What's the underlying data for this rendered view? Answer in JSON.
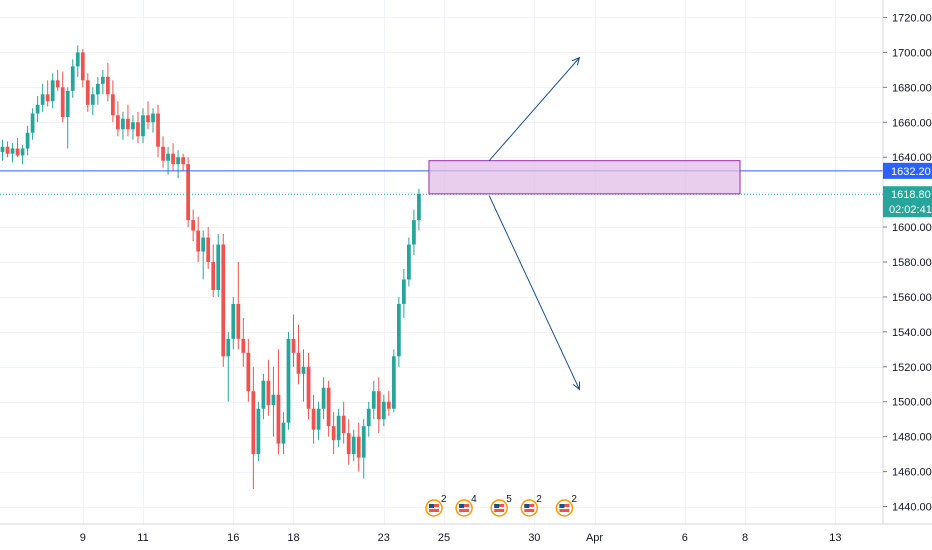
{
  "chart_data": {
    "type": "candlestick",
    "ylim": [
      1430,
      1730
    ],
    "grid": true,
    "y_ticks": [
      "1720.00",
      "1700.00",
      "1680.00",
      "1660.00",
      "1640.00",
      "1620.00",
      "1600.00",
      "1580.00",
      "1560.00",
      "1540.00",
      "1520.00",
      "1500.00",
      "1480.00",
      "1460.00",
      "1440.00"
    ],
    "y_tick_values": [
      1720,
      1700,
      1680,
      1660,
      1640,
      1620,
      1600,
      1580,
      1560,
      1540,
      1520,
      1500,
      1480,
      1460,
      1440
    ],
    "x_ticks": [
      {
        "label": "9",
        "bar": 16
      },
      {
        "label": "11",
        "bar": 28
      },
      {
        "label": "16",
        "bar": 46
      },
      {
        "label": "18",
        "bar": 58
      },
      {
        "label": "23",
        "bar": 76
      },
      {
        "label": "25",
        "bar": 88
      },
      {
        "label": "30",
        "bar": 106
      },
      {
        "label": "Apr",
        "bar": 118
      },
      {
        "label": "6",
        "bar": 136
      },
      {
        "label": "8",
        "bar": 148
      },
      {
        "label": "13",
        "bar": 166
      }
    ],
    "bar_count_visible": 176,
    "candles": [
      [
        1643,
        1650,
        1638,
        1646
      ],
      [
        1646,
        1649,
        1640,
        1642
      ],
      [
        1642,
        1648,
        1637,
        1645
      ],
      [
        1645,
        1651,
        1640,
        1641
      ],
      [
        1641,
        1647,
        1636,
        1645
      ],
      [
        1645,
        1658,
        1641,
        1654
      ],
      [
        1654,
        1668,
        1650,
        1665
      ],
      [
        1665,
        1675,
        1660,
        1670
      ],
      [
        1670,
        1682,
        1666,
        1676
      ],
      [
        1676,
        1684,
        1669,
        1672
      ],
      [
        1672,
        1688,
        1668,
        1684
      ],
      [
        1684,
        1690,
        1678,
        1680
      ],
      [
        1680,
        1689,
        1660,
        1663
      ],
      [
        1663,
        1680,
        1645,
        1678
      ],
      [
        1678,
        1696,
        1674,
        1692
      ],
      [
        1692,
        1704,
        1686,
        1700
      ],
      [
        1700,
        1702,
        1680,
        1684
      ],
      [
        1684,
        1688,
        1666,
        1670
      ],
      [
        1670,
        1680,
        1664,
        1676
      ],
      [
        1676,
        1686,
        1670,
        1682
      ],
      [
        1682,
        1690,
        1676,
        1686
      ],
      [
        1686,
        1694,
        1672,
        1676
      ],
      [
        1676,
        1684,
        1660,
        1664
      ],
      [
        1664,
        1672,
        1652,
        1656
      ],
      [
        1656,
        1666,
        1650,
        1662
      ],
      [
        1662,
        1670,
        1652,
        1656
      ],
      [
        1656,
        1664,
        1650,
        1660
      ],
      [
        1660,
        1666,
        1648,
        1652
      ],
      [
        1652,
        1668,
        1648,
        1664
      ],
      [
        1664,
        1672,
        1656,
        1660
      ],
      [
        1660,
        1668,
        1654,
        1665
      ],
      [
        1665,
        1670,
        1640,
        1646
      ],
      [
        1646,
        1652,
        1634,
        1638
      ],
      [
        1638,
        1646,
        1630,
        1642
      ],
      [
        1642,
        1648,
        1632,
        1636
      ],
      [
        1636,
        1644,
        1628,
        1640
      ],
      [
        1640,
        1642,
        1632,
        1636
      ],
      [
        1636,
        1640,
        1600,
        1604
      ],
      [
        1604,
        1610,
        1592,
        1598
      ],
      [
        1598,
        1606,
        1580,
        1586
      ],
      [
        1586,
        1598,
        1570,
        1594
      ],
      [
        1594,
        1600,
        1576,
        1580
      ],
      [
        1580,
        1590,
        1560,
        1564
      ],
      [
        1564,
        1596,
        1560,
        1590
      ],
      [
        1590,
        1596,
        1520,
        1526
      ],
      [
        1526,
        1540,
        1500,
        1536
      ],
      [
        1536,
        1560,
        1530,
        1556
      ],
      [
        1556,
        1580,
        1530,
        1536
      ],
      [
        1536,
        1548,
        1520,
        1528
      ],
      [
        1528,
        1536,
        1500,
        1506
      ],
      [
        1506,
        1520,
        1450,
        1470
      ],
      [
        1470,
        1500,
        1466,
        1496
      ],
      [
        1496,
        1516,
        1490,
        1512
      ],
      [
        1512,
        1524,
        1492,
        1498
      ],
      [
        1498,
        1520,
        1480,
        1504
      ],
      [
        1504,
        1530,
        1470,
        1476
      ],
      [
        1476,
        1494,
        1470,
        1488
      ],
      [
        1488,
        1540,
        1484,
        1536
      ],
      [
        1536,
        1550,
        1520,
        1528
      ],
      [
        1528,
        1544,
        1510,
        1516
      ],
      [
        1516,
        1530,
        1500,
        1520
      ],
      [
        1520,
        1528,
        1490,
        1496
      ],
      [
        1496,
        1504,
        1476,
        1484
      ],
      [
        1484,
        1500,
        1478,
        1496
      ],
      [
        1496,
        1514,
        1490,
        1508
      ],
      [
        1508,
        1512,
        1480,
        1486
      ],
      [
        1486,
        1494,
        1470,
        1478
      ],
      [
        1478,
        1496,
        1474,
        1492
      ],
      [
        1492,
        1500,
        1476,
        1482
      ],
      [
        1482,
        1490,
        1464,
        1470
      ],
      [
        1470,
        1484,
        1466,
        1480
      ],
      [
        1480,
        1488,
        1460,
        1468
      ],
      [
        1468,
        1490,
        1456,
        1486
      ],
      [
        1486,
        1500,
        1480,
        1496
      ],
      [
        1496,
        1512,
        1490,
        1506
      ],
      [
        1506,
        1514,
        1482,
        1490
      ],
      [
        1490,
        1504,
        1486,
        1500
      ],
      [
        1500,
        1506,
        1492,
        1496
      ],
      [
        1496,
        1530,
        1494,
        1526
      ],
      [
        1526,
        1560,
        1520,
        1556
      ],
      [
        1556,
        1576,
        1548,
        1570
      ],
      [
        1570,
        1594,
        1566,
        1590
      ],
      [
        1590,
        1610,
        1584,
        1604
      ],
      [
        1604,
        1622,
        1598,
        1619
      ]
    ],
    "colors": {
      "up": "#26a69a",
      "down": "#ef5350",
      "grid": "#f0f3fa"
    },
    "horizontal_lines": [
      {
        "value": 1632.2,
        "label": "1632.20",
        "color": "#2962ff",
        "style": "solid"
      },
      {
        "value": 1618.8,
        "label": "1618.80",
        "color": "#26a69a",
        "style": "dotted"
      }
    ],
    "countdown": {
      "label": "02:02:41",
      "color": "#26a69a"
    },
    "zone": {
      "from_bar": 85,
      "to_bar": 147,
      "y_high": 1638,
      "y_low": 1619,
      "fill": "#e1bee7",
      "stroke": "#9c27b0"
    },
    "arrows": [
      {
        "from_bar": 97,
        "from_y": 1638,
        "to_bar": 115,
        "to_y": 1697,
        "color": "#1e4f8c"
      },
      {
        "from_bar": 97,
        "from_y": 1618,
        "to_bar": 115,
        "to_y": 1507,
        "color": "#1e4f8c"
      }
    ],
    "events": [
      {
        "bar": 86,
        "count": "2"
      },
      {
        "bar": 92,
        "count": "4"
      },
      {
        "bar": 99,
        "count": "5"
      },
      {
        "bar": 105,
        "count": "2"
      },
      {
        "bar": 112,
        "count": "2"
      }
    ]
  }
}
